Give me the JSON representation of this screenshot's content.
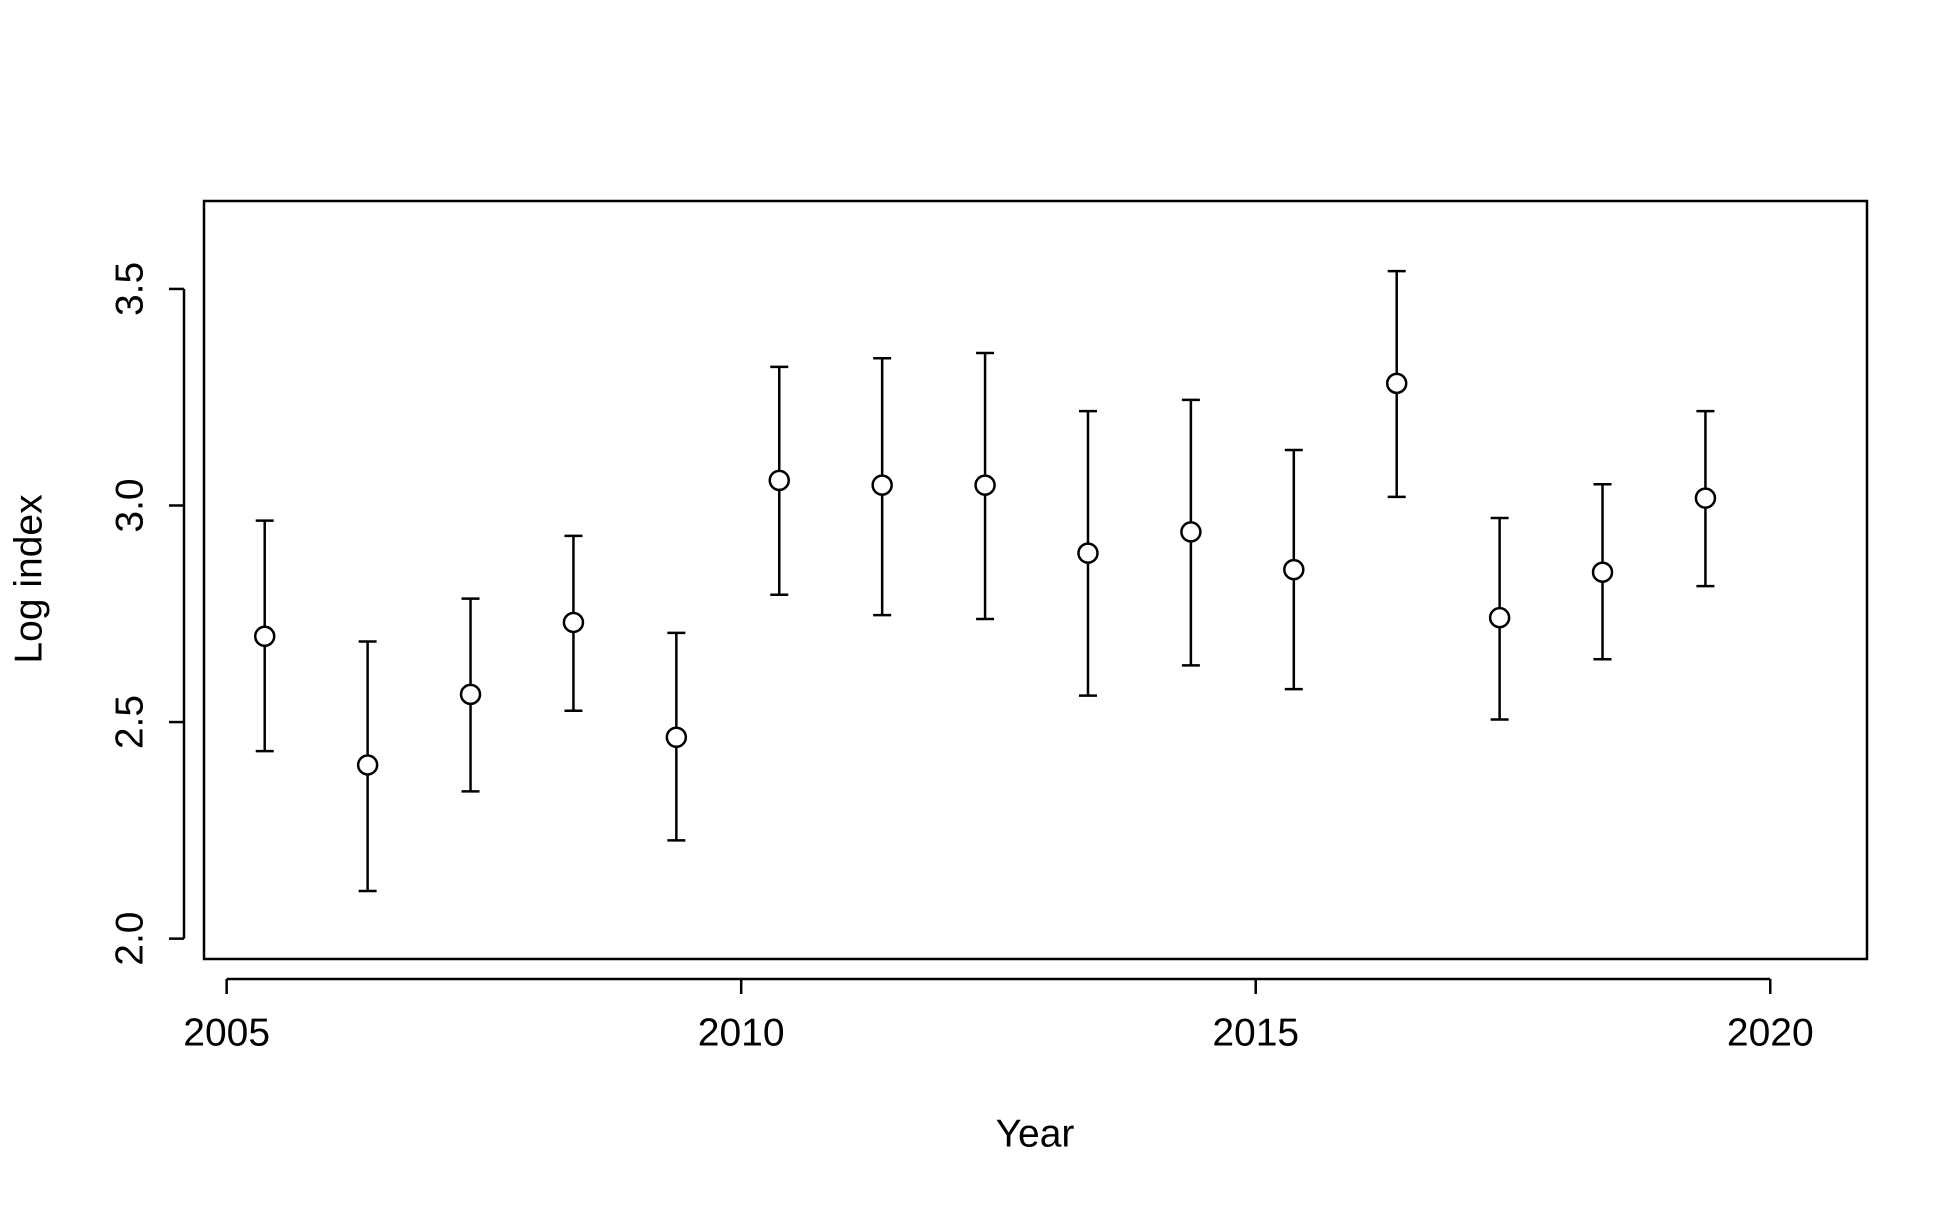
{
  "chart_data": {
    "type": "errorbar",
    "x_label": "Year",
    "y_label": "Log index",
    "x": [
      2005.37,
      2006.37,
      2007.37,
      2008.37,
      2009.37,
      2010.37,
      2011.37,
      2012.37,
      2013.37,
      2014.37,
      2015.37,
      2016.37,
      2017.37,
      2018.37,
      2019.37
    ],
    "series": [
      {
        "color": "#000000",
        "values": [
          2.698,
          2.401,
          2.564,
          2.73,
          2.465,
          3.058,
          3.047,
          3.047,
          2.89,
          2.939,
          2.852,
          3.282,
          2.741,
          2.846,
          3.017
        ],
        "lower": [
          2.433,
          2.11,
          2.34,
          2.526,
          2.227,
          2.794,
          2.747,
          2.738,
          2.561,
          2.631,
          2.576,
          3.02,
          2.506,
          2.645,
          2.814
        ],
        "upper": [
          2.965,
          2.686,
          2.785,
          2.93,
          2.706,
          3.32,
          3.34,
          3.352,
          3.218,
          3.244,
          3.128,
          3.541,
          2.971,
          3.049,
          3.218
        ]
      }
    ],
    "xlim": [
      2004.78,
      2020.94
    ],
    "xticks": [
      2005,
      2010,
      2015,
      2020
    ],
    "ylim": [
      1.953,
      3.703
    ],
    "yticks": [
      {
        "value": 2,
        "label": "2.0"
      },
      2.5,
      {
        "value": 3,
        "label": "3.0"
      },
      3.5
    ],
    "grid": false
  }
}
